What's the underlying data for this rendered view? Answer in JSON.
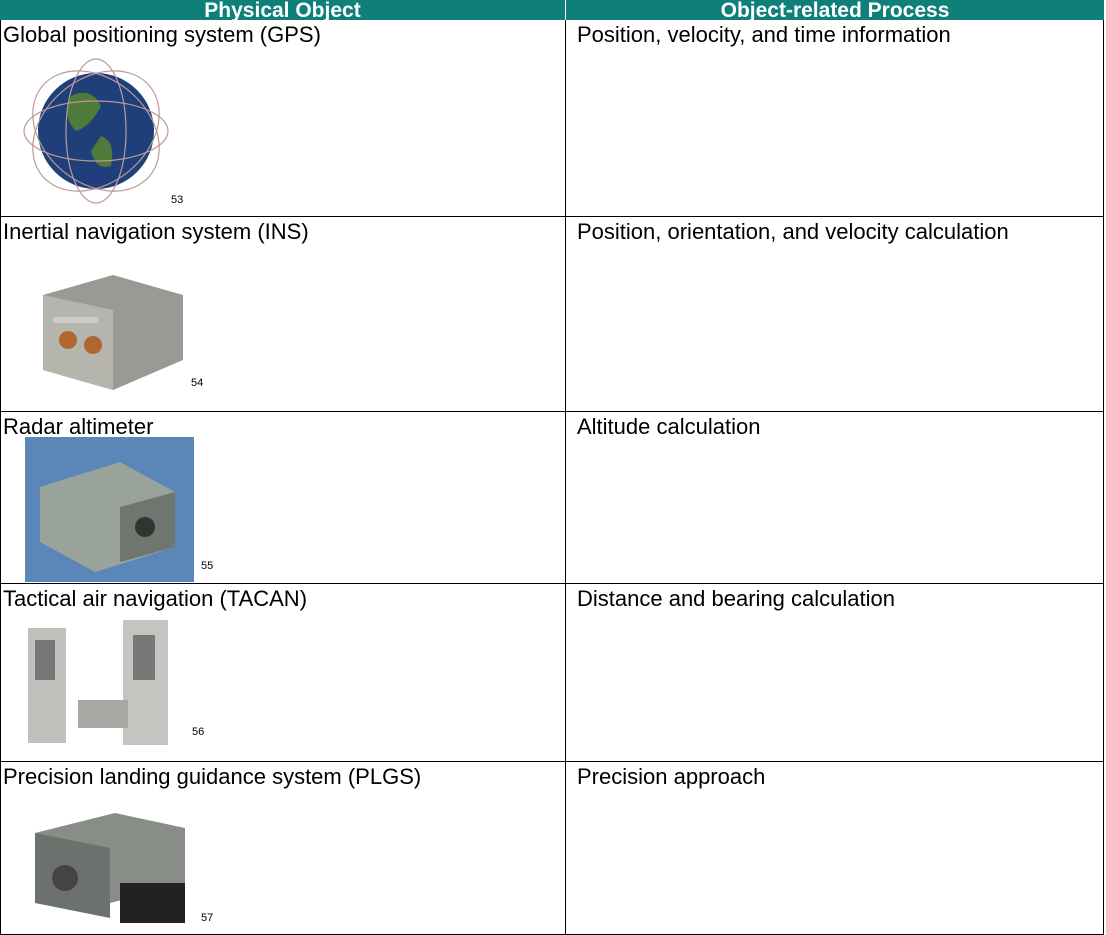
{
  "table": {
    "header": [
      "Physical Object",
      "Object-related Process"
    ],
    "rows": [
      {
        "object": "Global positioning system (GPS)",
        "footnote": "53",
        "process": "Position, velocity, and time information"
      },
      {
        "object": "Inertial navigation system (INS)",
        "footnote": "54",
        "process": "Position, orientation, and velocity calculation"
      },
      {
        "object": "Radar altimeter",
        "footnote": "55",
        "process": "Altitude calculation"
      },
      {
        "object": "Tactical air navigation (TACAN)",
        "footnote": "56",
        "process": "Distance and bearing calculation"
      },
      {
        "object": "Precision landing guidance system (PLGS)",
        "footnote": "57",
        "process": "Precision approach"
      }
    ]
  }
}
